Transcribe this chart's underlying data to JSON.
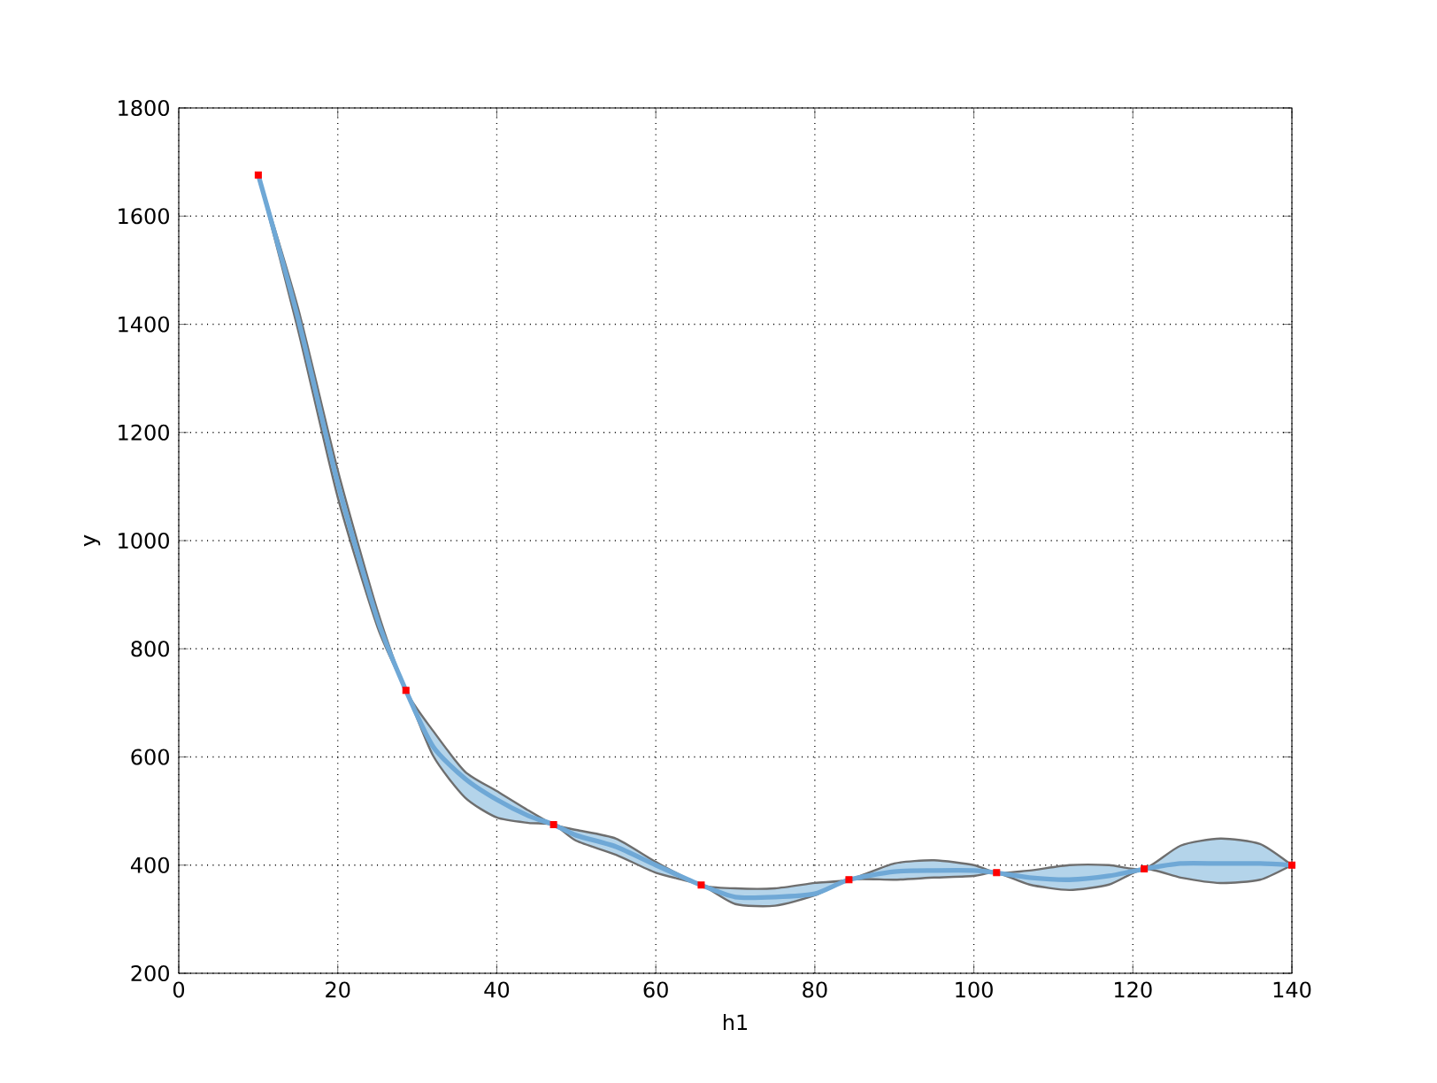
{
  "chart_data": {
    "type": "line",
    "xlabel": "h1",
    "ylabel": "y",
    "xlim": [
      0,
      140
    ],
    "ylim": [
      200,
      1800
    ],
    "xticks": [
      0,
      20,
      40,
      60,
      80,
      100,
      120,
      140
    ],
    "yticks": [
      200,
      400,
      600,
      800,
      1000,
      1200,
      1400,
      1600,
      1800
    ],
    "grid": true,
    "series": [
      {
        "color": "#6fa8d6",
        "x": [
          10,
          15,
          20,
          25,
          28.57,
          32,
          36,
          40,
          44,
          47.14,
          50,
          55,
          60,
          65.71,
          70,
          75,
          80,
          84.29,
          90,
          95,
          100,
          102.86,
          107,
          112,
          117,
          121.43,
          126,
          131,
          136,
          140
        ],
        "values": [
          1676,
          1411,
          1106,
          854,
          723,
          619,
          560,
          521,
          491,
          475,
          455,
          434,
          400,
          363,
          341,
          341,
          347,
          373,
          388,
          390,
          390,
          386,
          377,
          373,
          380,
          393,
          403,
          403,
          403,
          400
        ],
        "lower": [
          1676,
          1390,
          1080,
          840,
          723,
          602,
          525,
          488,
          478,
          475,
          445,
          419,
          386,
          363,
          328,
          325,
          344,
          373,
          373,
          377,
          380,
          386,
          364,
          354,
          364,
          393,
          377,
          367,
          373,
          400
        ],
        "upper": [
          1676,
          1430,
          1130,
          870,
          723,
          648,
          573,
          537,
          501,
          475,
          465,
          449,
          406,
          363,
          357,
          357,
          367,
          373,
          403,
          409,
          400,
          386,
          390,
          400,
          400,
          393,
          436,
          449,
          439,
          400
        ]
      },
      {
        "type": "scatter",
        "color": "#ff0000",
        "marker": "square",
        "x": [
          10,
          28.57,
          47.14,
          65.71,
          84.29,
          102.86,
          121.43,
          140
        ],
        "values": [
          1676,
          723,
          475,
          363,
          373,
          386,
          393,
          400
        ]
      }
    ]
  }
}
